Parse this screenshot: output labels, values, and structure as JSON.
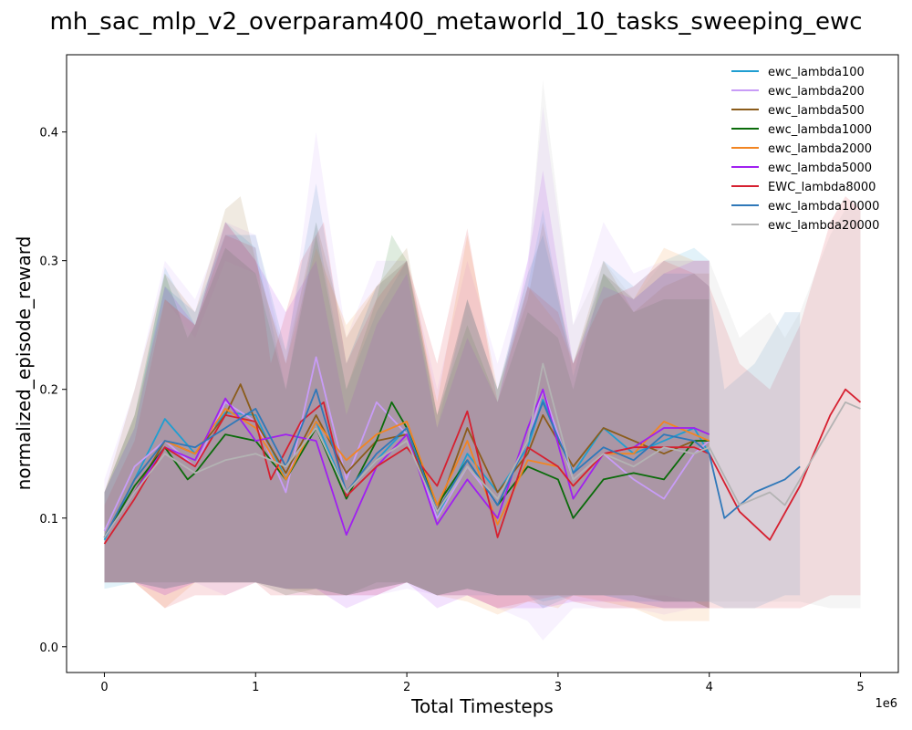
{
  "chart_data": {
    "type": "line",
    "title": "mh_sac_mlp_v2_overparam400_metaworld_10_tasks_sweeping_ewc",
    "xlabel": "Total Timesteps",
    "ylabel": "normalized_episode_reward",
    "x_offset_text": "1e6",
    "xlim": [
      -0.25,
      5.25
    ],
    "ylim": [
      -0.02,
      0.46
    ],
    "xticks": [
      0,
      1,
      2,
      3,
      4,
      5
    ],
    "xtick_labels": [
      "0",
      "1",
      "2",
      "3",
      "4",
      "5"
    ],
    "yticks": [
      0.0,
      0.1,
      0.2,
      0.3,
      0.4
    ],
    "ytick_labels": [
      "0.0",
      "0.1",
      "0.2",
      "0.3",
      "0.4"
    ],
    "x_units": "millions of timesteps",
    "grid": false,
    "legend_position": "top-right",
    "shaded_band": true,
    "series": [
      {
        "name": "ewc_lambda100",
        "color": "#1f9ed1",
        "x": [
          0,
          0.2,
          0.4,
          0.6,
          0.8,
          1.0,
          1.2,
          1.4,
          1.6,
          1.8,
          2.0,
          2.2,
          2.4,
          2.6,
          2.8,
          2.9,
          3.1,
          3.3,
          3.5,
          3.7,
          3.9,
          4.0
        ],
        "y": [
          0.083,
          0.13,
          0.177,
          0.15,
          0.182,
          0.18,
          0.13,
          0.175,
          0.12,
          0.145,
          0.17,
          0.1,
          0.15,
          0.12,
          0.155,
          0.192,
          0.135,
          0.17,
          0.15,
          0.16,
          0.17,
          0.15
        ],
        "upper": [
          0.12,
          0.17,
          0.295,
          0.25,
          0.33,
          0.31,
          0.2,
          0.33,
          0.2,
          0.26,
          0.3,
          0.17,
          0.27,
          0.2,
          0.28,
          0.34,
          0.21,
          0.3,
          0.28,
          0.3,
          0.31,
          0.3
        ],
        "lower": [
          0.045,
          0.05,
          0.045,
          0.05,
          0.05,
          0.05,
          0.045,
          0.04,
          0.04,
          0.045,
          0.05,
          0.04,
          0.04,
          0.04,
          0.04,
          0.03,
          0.04,
          0.04,
          0.035,
          0.03,
          0.03,
          0.03
        ]
      },
      {
        "name": "ewc_lambda200",
        "color": "#c89cf7",
        "x": [
          0,
          0.2,
          0.4,
          0.6,
          0.8,
          1.0,
          1.2,
          1.4,
          1.6,
          1.8,
          2.0,
          2.2,
          2.4,
          2.6,
          2.8,
          2.9,
          3.1,
          3.3,
          3.5,
          3.7,
          3.9,
          4.0
        ],
        "y": [
          0.09,
          0.14,
          0.16,
          0.14,
          0.19,
          0.175,
          0.12,
          0.225,
          0.13,
          0.19,
          0.165,
          0.1,
          0.14,
          0.11,
          0.16,
          0.2,
          0.13,
          0.15,
          0.13,
          0.115,
          0.15,
          0.16
        ],
        "upper": [
          0.13,
          0.2,
          0.3,
          0.27,
          0.33,
          0.32,
          0.22,
          0.4,
          0.24,
          0.3,
          0.3,
          0.2,
          0.3,
          0.22,
          0.3,
          0.42,
          0.25,
          0.33,
          0.29,
          0.3,
          0.3,
          0.3
        ],
        "lower": [
          0.05,
          0.05,
          0.04,
          0.05,
          0.04,
          0.05,
          0.04,
          0.04,
          0.04,
          0.04,
          0.045,
          0.04,
          0.04,
          0.03,
          0.02,
          0.005,
          0.03,
          0.03,
          0.03,
          0.025,
          0.03,
          0.03
        ]
      },
      {
        "name": "ewc_lambda500",
        "color": "#8b5c1b",
        "x": [
          0,
          0.2,
          0.4,
          0.6,
          0.8,
          0.9,
          1.0,
          1.2,
          1.4,
          1.6,
          1.8,
          2.0,
          2.2,
          2.4,
          2.6,
          2.8,
          2.9,
          3.1,
          3.3,
          3.5,
          3.7,
          3.9,
          4.0
        ],
        "y": [
          0.085,
          0.12,
          0.16,
          0.15,
          0.18,
          0.204,
          0.175,
          0.135,
          0.18,
          0.135,
          0.16,
          0.165,
          0.105,
          0.17,
          0.12,
          0.15,
          0.18,
          0.14,
          0.17,
          0.16,
          0.15,
          0.16,
          0.16
        ],
        "upper": [
          0.12,
          0.2,
          0.29,
          0.26,
          0.34,
          0.35,
          0.3,
          0.22,
          0.33,
          0.24,
          0.28,
          0.31,
          0.18,
          0.27,
          0.2,
          0.27,
          0.33,
          0.22,
          0.3,
          0.26,
          0.28,
          0.29,
          0.29
        ],
        "lower": [
          0.05,
          0.05,
          0.045,
          0.05,
          0.05,
          0.05,
          0.05,
          0.045,
          0.045,
          0.04,
          0.045,
          0.05,
          0.04,
          0.045,
          0.04,
          0.04,
          0.04,
          0.04,
          0.04,
          0.04,
          0.035,
          0.035,
          0.03
        ]
      },
      {
        "name": "ewc_lambda1000",
        "color": "#0a6b0a",
        "x": [
          0,
          0.2,
          0.4,
          0.55,
          0.6,
          0.8,
          1.0,
          1.2,
          1.4,
          1.6,
          1.8,
          1.9,
          2.0,
          2.2,
          2.4,
          2.6,
          2.8,
          3.0,
          3.1,
          3.3,
          3.5,
          3.7,
          3.9,
          4.0
        ],
        "y": [
          0.085,
          0.125,
          0.155,
          0.13,
          0.135,
          0.165,
          0.16,
          0.13,
          0.17,
          0.115,
          0.16,
          0.19,
          0.17,
          0.11,
          0.145,
          0.11,
          0.14,
          0.13,
          0.1,
          0.13,
          0.135,
          0.13,
          0.16,
          0.16
        ],
        "upper": [
          0.12,
          0.18,
          0.29,
          0.24,
          0.25,
          0.31,
          0.29,
          0.2,
          0.32,
          0.2,
          0.27,
          0.32,
          0.3,
          0.18,
          0.25,
          0.19,
          0.26,
          0.24,
          0.2,
          0.29,
          0.26,
          0.27,
          0.27,
          0.27
        ],
        "lower": [
          0.05,
          0.05,
          0.05,
          0.05,
          0.05,
          0.05,
          0.05,
          0.04,
          0.045,
          0.04,
          0.05,
          0.05,
          0.05,
          0.04,
          0.045,
          0.04,
          0.04,
          0.04,
          0.04,
          0.04,
          0.04,
          0.035,
          0.035,
          0.03
        ]
      },
      {
        "name": "ewc_lambda2000",
        "color": "#f28522",
        "x": [
          0,
          0.2,
          0.4,
          0.6,
          0.8,
          1.0,
          1.2,
          1.4,
          1.6,
          1.8,
          2.0,
          2.2,
          2.4,
          2.6,
          2.8,
          3.0,
          3.1,
          3.3,
          3.5,
          3.7,
          3.9,
          4.0
        ],
        "y": [
          0.085,
          0.13,
          0.16,
          0.15,
          0.185,
          0.17,
          0.13,
          0.175,
          0.145,
          0.165,
          0.175,
          0.11,
          0.16,
          0.095,
          0.145,
          0.14,
          0.125,
          0.15,
          0.15,
          0.175,
          0.165,
          0.16
        ],
        "upper": [
          0.12,
          0.18,
          0.27,
          0.25,
          0.33,
          0.3,
          0.22,
          0.31,
          0.25,
          0.28,
          0.3,
          0.19,
          0.32,
          0.2,
          0.28,
          0.25,
          0.22,
          0.29,
          0.27,
          0.31,
          0.3,
          0.3
        ],
        "lower": [
          0.05,
          0.05,
          0.03,
          0.05,
          0.05,
          0.05,
          0.045,
          0.04,
          0.04,
          0.045,
          0.05,
          0.04,
          0.035,
          0.025,
          0.035,
          0.03,
          0.04,
          0.035,
          0.03,
          0.02,
          0.02,
          0.02
        ]
      },
      {
        "name": "ewc_lambda5000",
        "color": "#a020f0",
        "x": [
          0,
          0.2,
          0.4,
          0.6,
          0.8,
          1.0,
          1.2,
          1.4,
          1.6,
          1.8,
          2.0,
          2.2,
          2.4,
          2.6,
          2.8,
          2.9,
          3.1,
          3.3,
          3.5,
          3.7,
          3.9,
          4.0
        ],
        "y": [
          0.085,
          0.12,
          0.155,
          0.145,
          0.193,
          0.16,
          0.165,
          0.16,
          0.087,
          0.14,
          0.165,
          0.095,
          0.13,
          0.1,
          0.17,
          0.2,
          0.115,
          0.15,
          0.155,
          0.17,
          0.17,
          0.165
        ],
        "upper": [
          0.12,
          0.17,
          0.28,
          0.25,
          0.33,
          0.3,
          0.26,
          0.3,
          0.18,
          0.25,
          0.29,
          0.17,
          0.24,
          0.19,
          0.3,
          0.37,
          0.22,
          0.28,
          0.27,
          0.29,
          0.3,
          0.3
        ],
        "lower": [
          0.05,
          0.05,
          0.04,
          0.05,
          0.05,
          0.05,
          0.045,
          0.045,
          0.03,
          0.04,
          0.05,
          0.03,
          0.04,
          0.03,
          0.03,
          0.03,
          0.035,
          0.035,
          0.035,
          0.03,
          0.03,
          0.03
        ]
      },
      {
        "name": "EWC_lambda8000",
        "color": "#d62030",
        "x": [
          0,
          0.2,
          0.4,
          0.6,
          0.8,
          1.0,
          1.1,
          1.3,
          1.45,
          1.6,
          1.8,
          2.0,
          2.2,
          2.4,
          2.6,
          2.8,
          3.0,
          3.1,
          3.3,
          3.5,
          3.7,
          3.9,
          4.0,
          4.2,
          4.4,
          4.6,
          4.8,
          4.9,
          5.0
        ],
        "y": [
          0.08,
          0.115,
          0.155,
          0.14,
          0.18,
          0.175,
          0.13,
          0.175,
          0.19,
          0.117,
          0.14,
          0.155,
          0.125,
          0.183,
          0.085,
          0.155,
          0.14,
          0.125,
          0.15,
          0.155,
          0.155,
          0.155,
          0.15,
          0.105,
          0.083,
          0.125,
          0.18,
          0.2,
          0.19
        ],
        "upper": [
          0.11,
          0.16,
          0.27,
          0.25,
          0.32,
          0.31,
          0.22,
          0.3,
          0.33,
          0.22,
          0.27,
          0.3,
          0.22,
          0.325,
          0.19,
          0.28,
          0.26,
          0.22,
          0.27,
          0.28,
          0.3,
          0.29,
          0.28,
          0.22,
          0.2,
          0.25,
          0.33,
          0.35,
          0.34
        ],
        "lower": [
          0.05,
          0.05,
          0.03,
          0.04,
          0.04,
          0.05,
          0.04,
          0.04,
          0.04,
          0.04,
          0.04,
          0.05,
          0.04,
          0.04,
          0.03,
          0.035,
          0.04,
          0.035,
          0.03,
          0.03,
          0.03,
          0.03,
          0.03,
          0.03,
          0.03,
          0.03,
          0.04,
          0.04,
          0.04
        ]
      },
      {
        "name": "ewc_lambda10000",
        "color": "#2f78b9",
        "x": [
          0,
          0.2,
          0.4,
          0.6,
          0.8,
          1.0,
          1.2,
          1.4,
          1.6,
          1.8,
          2.0,
          2.2,
          2.4,
          2.6,
          2.8,
          2.9,
          3.1,
          3.3,
          3.5,
          3.7,
          3.9,
          4.0,
          4.1,
          4.3,
          4.5,
          4.6
        ],
        "y": [
          0.085,
          0.13,
          0.16,
          0.155,
          0.17,
          0.185,
          0.14,
          0.2,
          0.12,
          0.15,
          0.17,
          0.105,
          0.145,
          0.11,
          0.16,
          0.19,
          0.135,
          0.155,
          0.145,
          0.165,
          0.16,
          0.15,
          0.1,
          0.12,
          0.13,
          0.14
        ],
        "upper": [
          0.12,
          0.18,
          0.28,
          0.26,
          0.32,
          0.32,
          0.23,
          0.36,
          0.22,
          0.28,
          0.3,
          0.18,
          0.27,
          0.2,
          0.29,
          0.32,
          0.22,
          0.29,
          0.27,
          0.29,
          0.29,
          0.28,
          0.2,
          0.22,
          0.26,
          0.26
        ],
        "lower": [
          0.05,
          0.05,
          0.045,
          0.05,
          0.05,
          0.05,
          0.045,
          0.045,
          0.04,
          0.045,
          0.05,
          0.04,
          0.045,
          0.04,
          0.04,
          0.035,
          0.04,
          0.04,
          0.035,
          0.035,
          0.035,
          0.035,
          0.03,
          0.03,
          0.04,
          0.04
        ]
      },
      {
        "name": "ewc_lambda20000",
        "color": "#b3b3b3",
        "x": [
          0,
          0.2,
          0.4,
          0.6,
          0.8,
          1.0,
          1.2,
          1.4,
          1.6,
          1.8,
          2.0,
          2.2,
          2.4,
          2.6,
          2.8,
          2.9,
          3.1,
          3.3,
          3.5,
          3.7,
          3.9,
          4.0,
          4.2,
          4.4,
          4.5,
          4.6,
          4.8,
          4.9,
          5.0
        ],
        "y": [
          0.085,
          0.12,
          0.15,
          0.135,
          0.145,
          0.15,
          0.14,
          0.17,
          0.12,
          0.145,
          0.16,
          0.105,
          0.14,
          0.115,
          0.16,
          0.22,
          0.13,
          0.15,
          0.14,
          0.155,
          0.15,
          0.155,
          0.11,
          0.12,
          0.11,
          0.13,
          0.17,
          0.19,
          0.185
        ],
        "upper": [
          0.12,
          0.17,
          0.27,
          0.24,
          0.3,
          0.29,
          0.23,
          0.32,
          0.22,
          0.28,
          0.29,
          0.18,
          0.26,
          0.2,
          0.29,
          0.44,
          0.25,
          0.3,
          0.27,
          0.3,
          0.3,
          0.3,
          0.24,
          0.26,
          0.24,
          0.26,
          0.32,
          0.34,
          0.34
        ],
        "lower": [
          0.05,
          0.05,
          0.045,
          0.05,
          0.05,
          0.05,
          0.045,
          0.045,
          0.04,
          0.045,
          0.05,
          0.04,
          0.045,
          0.04,
          0.04,
          0.03,
          0.04,
          0.04,
          0.04,
          0.04,
          0.035,
          0.035,
          0.035,
          0.035,
          0.035,
          0.035,
          0.03,
          0.03,
          0.03
        ]
      }
    ]
  }
}
